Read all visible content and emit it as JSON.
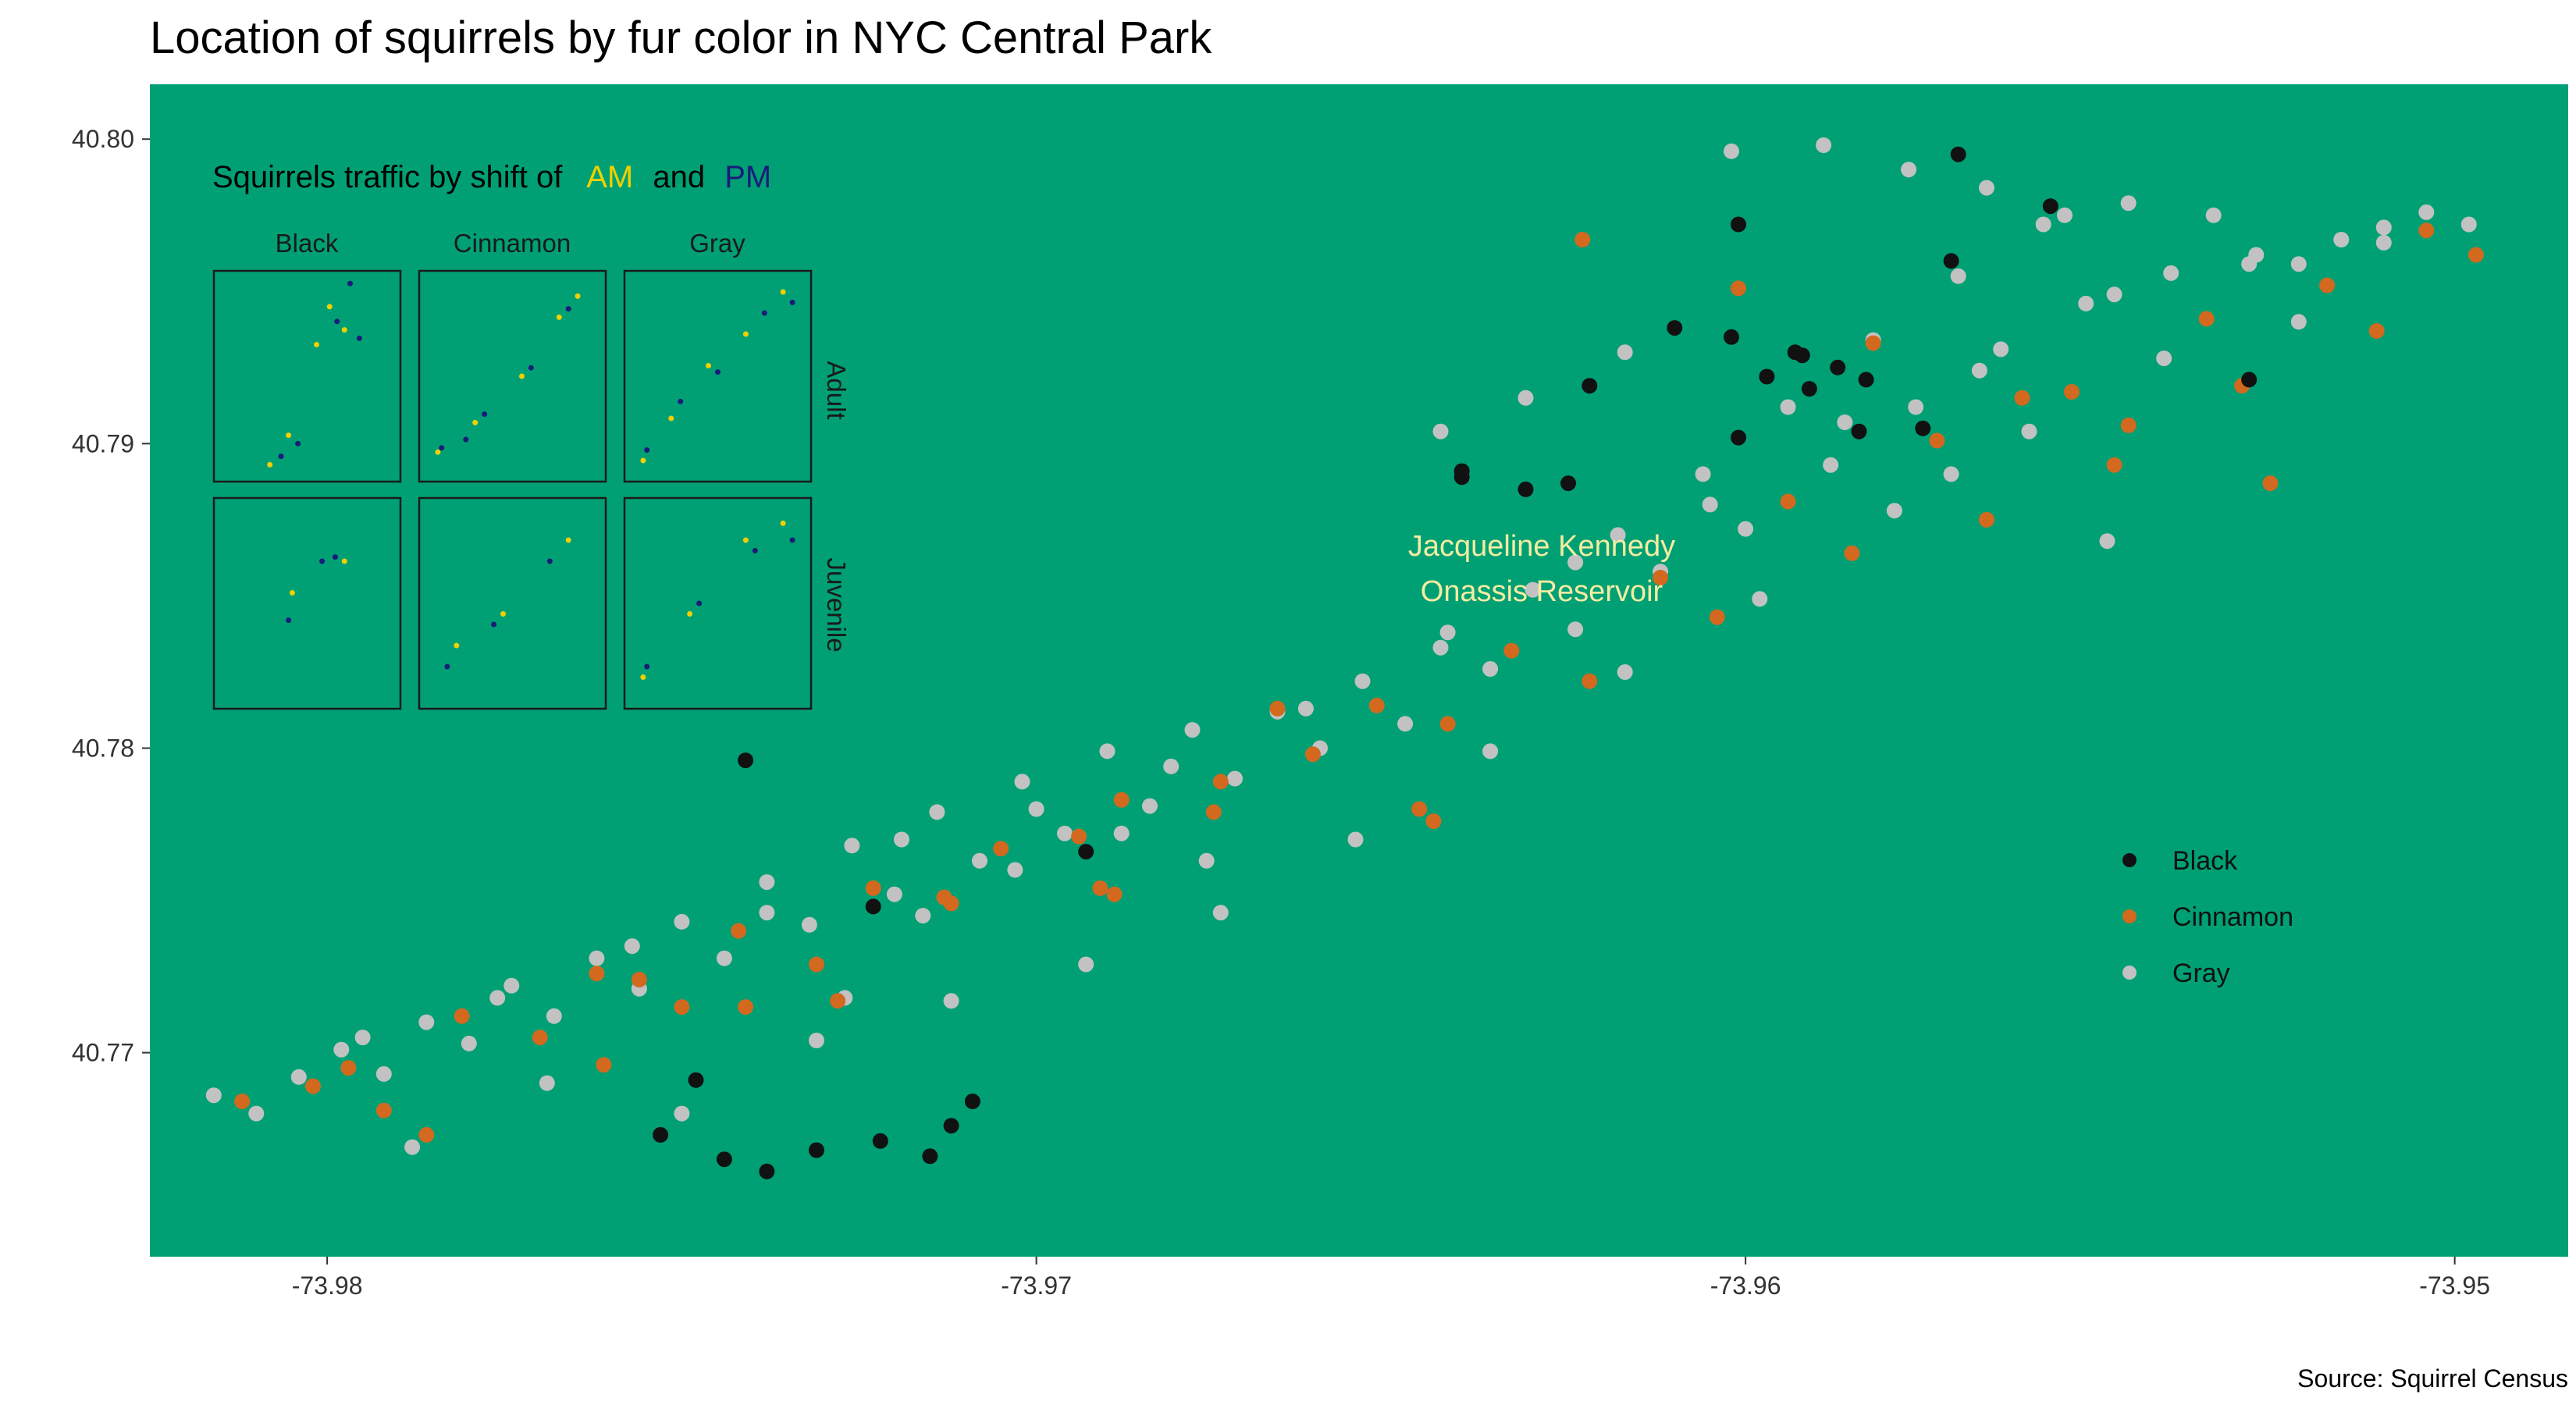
{
  "colors": {
    "panel_bg": "#00a074",
    "black_fur": "#111111",
    "cinnamon_fur": "#d2691e",
    "gray_fur": "#c2c2c2",
    "am": "#f0d000",
    "pm": "#1b1b7a",
    "annotation": "#f4eca2"
  },
  "chart_data": {
    "type": "scatter",
    "title": "Location of squirrels by fur color in NYC Central Park",
    "xlabel": "",
    "ylabel": "",
    "xlim": [
      -73.9825,
      -73.9484
    ],
    "ylim": [
      40.7633,
      40.8018
    ],
    "x_ticks": [
      -73.98,
      -73.97,
      -73.96,
      -73.95
    ],
    "x_tick_labels": [
      "-73.98",
      "-73.97",
      "-73.96",
      "-73.95"
    ],
    "y_ticks": [
      40.77,
      40.78,
      40.79,
      40.8
    ],
    "y_tick_labels": [
      "40.77",
      "40.78",
      "40.79",
      "40.80"
    ],
    "grid": false,
    "legend_position": "right",
    "series": [
      {
        "name": "Black",
        "color": "#111111",
        "x": [
          -73.9597,
          -73.9591,
          -73.9587,
          -73.9593,
          -73.9583,
          -73.9602,
          -73.961,
          -73.9571,
          -73.9584,
          -73.9575,
          -73.9625,
          -73.9631,
          -73.964,
          -73.9715,
          -73.9722,
          -73.9731,
          -73.9738,
          -73.9744,
          -73.9753,
          -73.9748,
          -73.9709,
          -73.9712,
          -73.9693,
          -73.9601,
          -73.9622,
          -73.9557,
          -73.9529,
          -73.957,
          -73.9601,
          -73.9592,
          -73.964,
          -73.9741,
          -73.9723
        ],
        "y": [
          40.7922,
          40.7918,
          40.7925,
          40.793,
          40.7921,
          40.7935,
          40.7938,
          40.796,
          40.7904,
          40.7905,
          40.7887,
          40.7885,
          40.7889,
          40.7666,
          40.7671,
          40.7668,
          40.7661,
          40.7665,
          40.7673,
          40.7691,
          40.7684,
          40.7676,
          40.7766,
          40.7972,
          40.7919,
          40.7978,
          40.7921,
          40.7995,
          40.7902,
          40.7929,
          40.7891,
          40.7796,
          40.7748
        ]
      },
      {
        "name": "Cinnamon",
        "color": "#d2691e",
        "x": [
          -73.9812,
          -73.9797,
          -73.9781,
          -73.9762,
          -73.9742,
          -73.9723,
          -73.9705,
          -73.9688,
          -73.9661,
          -73.9642,
          -73.9622,
          -73.9604,
          -73.9585,
          -73.9566,
          -73.9548,
          -73.953,
          -73.9511,
          -73.9497,
          -73.9792,
          -73.977,
          -73.975,
          -73.9731,
          -73.9712,
          -73.9694,
          -73.9674,
          -73.9652,
          -73.9633,
          -73.9612,
          -73.9594,
          -73.9573,
          -73.9554,
          -73.9535,
          -73.9518,
          -73.9504,
          -73.9644,
          -73.9646,
          -73.9689,
          -73.9691,
          -73.9623,
          -73.9601,
          -73.9582,
          -73.9561,
          -73.9546,
          -73.9526,
          -73.9666,
          -73.9713,
          -73.9675,
          -73.9741,
          -73.9761,
          -73.9786,
          -73.9802,
          -73.9756,
          -73.9728
        ],
        "y": [
          40.7684,
          40.7695,
          40.7712,
          40.7726,
          40.774,
          40.7754,
          40.7767,
          40.7783,
          40.7798,
          40.7808,
          40.7822,
          40.7843,
          40.7864,
          40.7875,
          40.7893,
          40.7919,
          40.7937,
          40.7962,
          40.7681,
          40.7705,
          40.7715,
          40.7729,
          40.7749,
          40.7771,
          40.7789,
          40.7814,
          40.7832,
          40.7856,
          40.7881,
          40.7901,
          40.7917,
          40.7941,
          40.7952,
          40.797,
          40.7776,
          40.778,
          40.7752,
          40.7754,
          40.7967,
          40.7951,
          40.7933,
          40.7915,
          40.7906,
          40.7887,
          40.7813,
          40.7751,
          40.7779,
          40.7715,
          40.7696,
          40.7673,
          40.7689,
          40.7724,
          40.7717
        ]
      },
      {
        "name": "Gray",
        "color": "#c2c2c2",
        "x": [
          -73.9816,
          -73.981,
          -73.9804,
          -73.9798,
          -73.9792,
          -73.9786,
          -73.978,
          -73.9774,
          -73.9768,
          -73.9762,
          -73.9756,
          -73.975,
          -73.9744,
          -73.9738,
          -73.9732,
          -73.9726,
          -73.972,
          -73.9714,
          -73.9708,
          -73.9702,
          -73.9696,
          -73.969,
          -73.9684,
          -73.9678,
          -73.9672,
          -73.9666,
          -73.966,
          -73.9654,
          -73.9648,
          -73.9642,
          -73.9636,
          -73.963,
          -73.9624,
          -73.9618,
          -73.9612,
          -73.9606,
          -73.96,
          -73.9594,
          -73.9588,
          -73.9582,
          -73.9576,
          -73.957,
          -73.9564,
          -73.9558,
          -73.9552,
          -73.9546,
          -73.954,
          -73.9534,
          -73.9528,
          -73.9522,
          -73.9516,
          -73.951,
          -73.9504,
          -73.9498,
          -73.9795,
          -73.9776,
          -73.9757,
          -73.9738,
          -73.9719,
          -73.97,
          -73.9681,
          -73.9662,
          -73.9643,
          -73.9624,
          -73.9605,
          -73.9586,
          -73.9567,
          -73.9548,
          -73.9529,
          -73.951,
          -73.9788,
          -73.9769,
          -73.975,
          -73.9731,
          -73.9712,
          -73.9693,
          -73.9674,
          -73.9655,
          -73.9636,
          -73.9617,
          -73.9598,
          -73.9579,
          -73.956,
          -73.9541,
          -73.9522,
          -73.9703,
          -73.9688,
          -73.9716,
          -73.9727,
          -73.9676,
          -73.9602,
          -73.9589,
          -73.9577,
          -73.9566,
          -73.9555,
          -73.9617,
          -73.9631,
          -73.9643,
          -73.9571,
          -73.9549
        ],
        "y": [
          40.7686,
          40.768,
          40.7692,
          40.7701,
          40.7693,
          40.771,
          40.7703,
          40.7722,
          40.7712,
          40.7731,
          40.7721,
          40.7743,
          40.7731,
          40.7756,
          40.7742,
          40.7768,
          40.7752,
          40.7779,
          40.7763,
          40.7789,
          40.7772,
          40.7799,
          40.7781,
          40.7806,
          40.779,
          40.7812,
          40.78,
          40.7822,
          40.7808,
          40.7838,
          40.7826,
          40.7852,
          40.7839,
          40.787,
          40.7858,
          40.789,
          40.7872,
          40.7912,
          40.7893,
          40.7934,
          40.7912,
          40.7955,
          40.7931,
          40.7972,
          40.7946,
          40.7979,
          40.7956,
          40.7975,
          40.7962,
          40.7959,
          40.7967,
          40.7971,
          40.7976,
          40.7972,
          40.7705,
          40.7718,
          40.7735,
          40.7746,
          40.777,
          40.778,
          40.7794,
          40.7813,
          40.7833,
          40.7861,
          40.788,
          40.7907,
          40.7924,
          40.7949,
          40.7959,
          40.7966,
          40.7669,
          40.769,
          40.768,
          40.7704,
          40.7717,
          40.7729,
          40.7746,
          40.777,
          40.7799,
          40.7825,
          40.7849,
          40.7878,
          40.7904,
          40.7928,
          40.794,
          40.776,
          40.7772,
          40.7745,
          40.7718,
          40.7763,
          40.7996,
          40.7998,
          40.799,
          40.7984,
          40.7975,
          40.793,
          40.7915,
          40.7904,
          40.789,
          40.7868
        ]
      }
    ],
    "legend_entries": [
      "Black",
      "Cinnamon",
      "Gray"
    ],
    "annotations": [
      {
        "text_lines": [
          "Jacqueline Kennedy",
          "Onassis Reservoir"
        ],
        "x": -73.9632,
        "y": 40.7867
      }
    ],
    "source": "Source: Squirrel Census"
  },
  "inset": {
    "title_prefix": "Squirrels traffic by shift of",
    "am_label": "AM",
    "and_label": "and",
    "pm_label": "PM",
    "columns": [
      "Black",
      "Cinnamon",
      "Gray"
    ],
    "rows": [
      "Adult",
      "Juvenile"
    ],
    "panels": [
      [
        {
          "am": [
            [
              0.62,
              0.17
            ],
            [
              0.7,
              0.28
            ],
            [
              0.4,
              0.78
            ],
            [
              0.3,
              0.92
            ],
            [
              0.55,
              0.35
            ]
          ],
          "pm": [
            [
              0.73,
              0.06
            ],
            [
              0.66,
              0.24
            ],
            [
              0.78,
              0.32
            ],
            [
              0.36,
              0.88
            ],
            [
              0.45,
              0.82
            ]
          ]
        },
        {
          "am": [
            [
              0.1,
              0.86
            ],
            [
              0.3,
              0.72
            ],
            [
              0.55,
              0.5
            ],
            [
              0.75,
              0.22
            ],
            [
              0.85,
              0.12
            ]
          ],
          "pm": [
            [
              0.12,
              0.84
            ],
            [
              0.35,
              0.68
            ],
            [
              0.6,
              0.46
            ],
            [
              0.8,
              0.18
            ],
            [
              0.25,
              0.8
            ]
          ]
        },
        {
          "am": [
            [
              0.1,
              0.9
            ],
            [
              0.25,
              0.7
            ],
            [
              0.45,
              0.45
            ],
            [
              0.65,
              0.3
            ],
            [
              0.85,
              0.1
            ]
          ],
          "pm": [
            [
              0.12,
              0.85
            ],
            [
              0.3,
              0.62
            ],
            [
              0.5,
              0.48
            ],
            [
              0.75,
              0.2
            ],
            [
              0.9,
              0.15
            ]
          ]
        }
      ],
      [
        {
          "am": [
            [
              0.42,
              0.45
            ],
            [
              0.7,
              0.3
            ]
          ],
          "pm": [
            [
              0.58,
              0.3
            ],
            [
              0.65,
              0.28
            ],
            [
              0.4,
              0.58
            ]
          ]
        },
        {
          "am": [
            [
              0.2,
              0.7
            ],
            [
              0.45,
              0.55
            ],
            [
              0.8,
              0.2
            ]
          ],
          "pm": [
            [
              0.15,
              0.8
            ],
            [
              0.4,
              0.6
            ],
            [
              0.7,
              0.3
            ]
          ]
        },
        {
          "am": [
            [
              0.1,
              0.85
            ],
            [
              0.35,
              0.55
            ],
            [
              0.65,
              0.2
            ],
            [
              0.85,
              0.12
            ]
          ],
          "pm": [
            [
              0.12,
              0.8
            ],
            [
              0.4,
              0.5
            ],
            [
              0.7,
              0.25
            ],
            [
              0.9,
              0.2
            ]
          ]
        }
      ]
    ]
  }
}
